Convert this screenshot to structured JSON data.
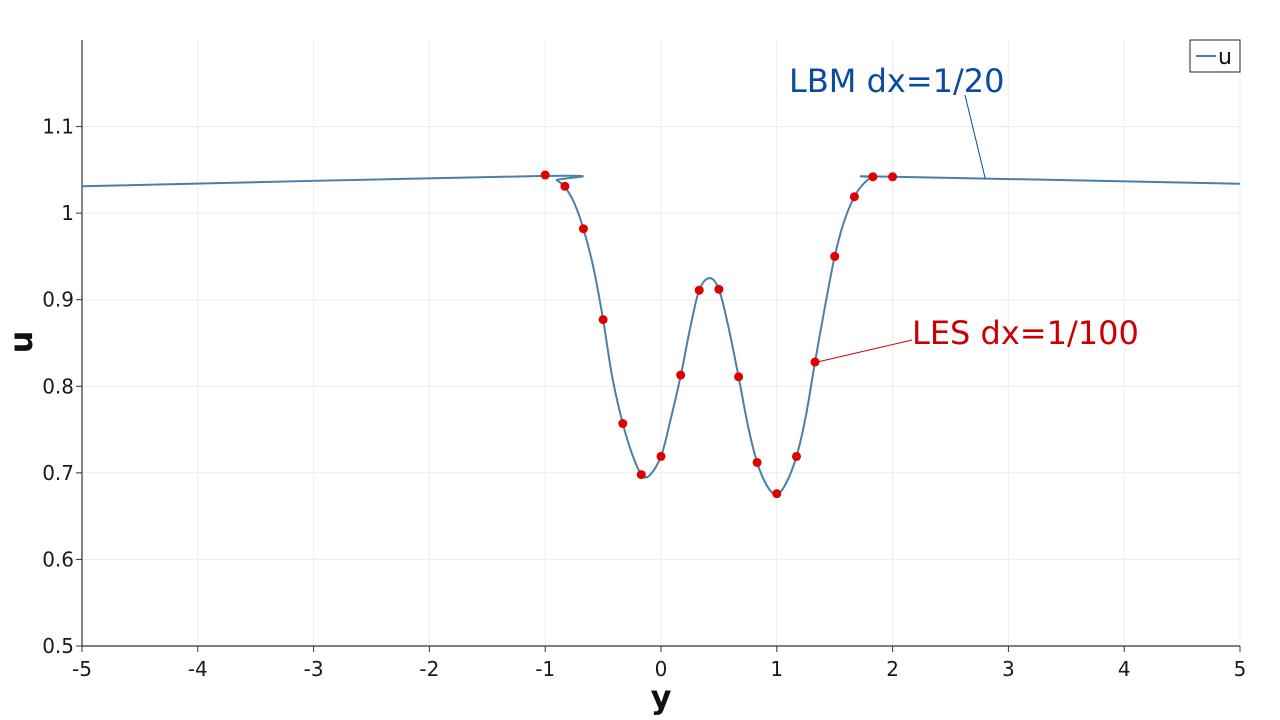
{
  "chart_data": {
    "type": "line",
    "xlabel": "y",
    "ylabel": "u",
    "xlim": [
      -5,
      5
    ],
    "ylim": [
      0.5,
      1.2
    ],
    "x_ticks": [
      -5,
      -4,
      -3,
      -2,
      -1,
      0,
      1,
      2,
      3,
      4,
      5
    ],
    "x_tick_labels": [
      "-5",
      "-4",
      "-3",
      "-2",
      "-1",
      "0",
      "1",
      "2",
      "3",
      "4",
      "5"
    ],
    "y_ticks": [
      0.5,
      0.6,
      0.7,
      0.8,
      0.9,
      1.0,
      1.1
    ],
    "y_tick_labels": [
      "0.5",
      "0.6",
      "0.7",
      "0.8",
      "0.9",
      "1",
      "1.1"
    ],
    "grid": true,
    "legend": {
      "position": "top-right",
      "entries": [
        "u"
      ]
    },
    "series": [
      {
        "name": "u",
        "color": "#4a7fa8",
        "style": "line",
        "points": [
          [
            -5,
            1.031
          ],
          [
            -1.0,
            1.043
          ],
          [
            -0.9,
            1.038
          ],
          [
            -0.83,
            1.03
          ],
          [
            -0.75,
            1.012
          ],
          [
            -0.67,
            0.982
          ],
          [
            -0.58,
            0.935
          ],
          [
            -0.5,
            0.877
          ],
          [
            -0.42,
            0.81
          ],
          [
            -0.33,
            0.757
          ],
          [
            -0.25,
            0.722
          ],
          [
            -0.17,
            0.698
          ],
          [
            -0.1,
            0.697
          ],
          [
            0.0,
            0.719
          ],
          [
            0.08,
            0.76
          ],
          [
            0.17,
            0.812
          ],
          [
            0.25,
            0.866
          ],
          [
            0.33,
            0.911
          ],
          [
            0.42,
            0.925
          ],
          [
            0.5,
            0.912
          ],
          [
            0.58,
            0.87
          ],
          [
            0.67,
            0.811
          ],
          [
            0.75,
            0.755
          ],
          [
            0.83,
            0.712
          ],
          [
            0.92,
            0.684
          ],
          [
            1.0,
            0.675
          ],
          [
            1.08,
            0.688
          ],
          [
            1.17,
            0.719
          ],
          [
            1.25,
            0.765
          ],
          [
            1.33,
            0.828
          ],
          [
            1.42,
            0.895
          ],
          [
            1.5,
            0.95
          ],
          [
            1.58,
            0.99
          ],
          [
            1.67,
            1.019
          ],
          [
            1.75,
            1.034
          ],
          [
            1.83,
            1.041
          ],
          [
            2.0,
            1.042
          ],
          [
            5.0,
            1.034
          ]
        ]
      },
      {
        "name": "",
        "color": "#e00000",
        "style": "markers",
        "points": [
          [
            -1.0,
            1.044
          ],
          [
            -0.83,
            1.031
          ],
          [
            -0.67,
            0.982
          ],
          [
            -0.5,
            0.877
          ],
          [
            -0.33,
            0.757
          ],
          [
            -0.17,
            0.698
          ],
          [
            0.0,
            0.719
          ],
          [
            0.17,
            0.813
          ],
          [
            0.33,
            0.911
          ],
          [
            0.5,
            0.912
          ],
          [
            0.67,
            0.811
          ],
          [
            0.83,
            0.712
          ],
          [
            1.0,
            0.676
          ],
          [
            1.17,
            0.719
          ],
          [
            1.33,
            0.828
          ],
          [
            1.5,
            0.95
          ],
          [
            1.67,
            1.019
          ],
          [
            1.83,
            1.042
          ],
          [
            2.0,
            1.042
          ]
        ]
      }
    ],
    "annotations": [
      {
        "text": "LBM dx=1/20",
        "color": "#0a4aa0",
        "target": [
          2.8,
          1.04
        ]
      },
      {
        "text": "LES dx=1/100",
        "color": "#cc0000",
        "target": [
          1.35,
          0.828
        ]
      }
    ]
  }
}
